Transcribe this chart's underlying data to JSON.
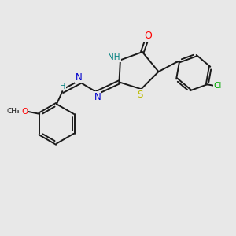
{
  "bg_color": "#e8e8e8",
  "bond_color": "#1a1a1a",
  "bond_width": 1.4,
  "atom_colors": {
    "N": "#0000cc",
    "O": "#ff0000",
    "S": "#bbbb00",
    "Cl": "#00aa00",
    "NH": "#008080",
    "H": "#008080"
  },
  "font_size": 7.5
}
